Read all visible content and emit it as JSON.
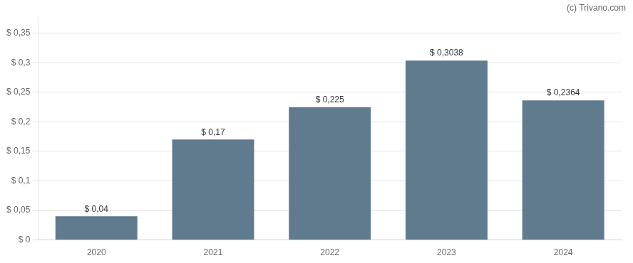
{
  "chart_data": {
    "type": "bar",
    "categories": [
      "2020",
      "2021",
      "2022",
      "2023",
      "2024"
    ],
    "values": [
      0.04,
      0.17,
      0.225,
      0.3038,
      0.2364
    ],
    "value_labels": [
      "$ 0,04",
      "$ 0,17",
      "$ 0,225",
      "$ 0,3038",
      "$ 0,2364"
    ],
    "data_labels": true,
    "color": "#5f7b8d",
    "ylim": [
      0,
      0.375
    ],
    "yticks": [
      {
        "value": 0,
        "label": "$ 0"
      },
      {
        "value": 0.05,
        "label": "$ 0,05"
      },
      {
        "value": 0.1,
        "label": "$ 0,1"
      },
      {
        "value": 0.15,
        "label": "$ 0,15"
      },
      {
        "value": 0.2,
        "label": "$ 0,2"
      },
      {
        "value": 0.25,
        "label": "$ 0,25"
      },
      {
        "value": 0.3,
        "label": "$ 0,3"
      },
      {
        "value": 0.35,
        "label": "$ 0,35"
      }
    ],
    "grid": true,
    "annotations": [
      "(c) Trivano.com"
    ]
  }
}
